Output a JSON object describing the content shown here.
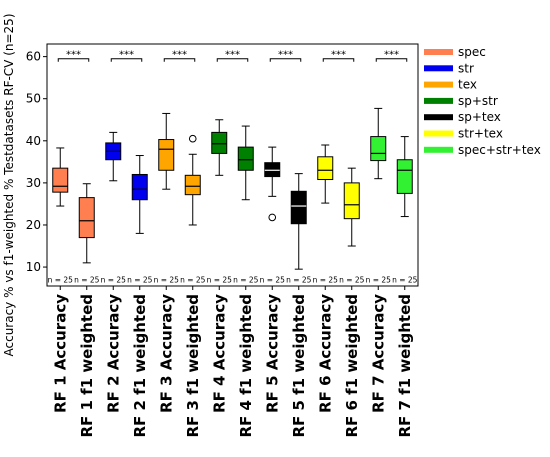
{
  "chart_data": {
    "type": "box",
    "ylabel": "Accuracy % vs f1-weighted % Testdatasets RF-CV (n=25)",
    "ylim": [
      5.5,
      63
    ],
    "yticks": [
      10,
      20,
      30,
      40,
      50,
      60
    ],
    "categories": [
      "RF 1 Accuracy",
      "RF 1 f1 weighted",
      "RF 2 Accuracy",
      "RF 2 f1 weighted",
      "RF 3 Accuracy",
      "RF 3 f1 weighted",
      "RF 4 Accuracy",
      "RF 4 f1 weighted",
      "RF 5 Accuracy",
      "RF 5 f1 weighted",
      "RF 6 Accuracy",
      "RF 6 f1 weighted",
      "RF 7 Accuracy",
      "RF 7 f1 weighted"
    ],
    "boxes": [
      {
        "whisker_low": 24.5,
        "q1": 27.8,
        "median": 29.2,
        "q3": 33.5,
        "whisker_high": 38.3,
        "outliers": []
      },
      {
        "whisker_low": 11.0,
        "q1": 17.0,
        "median": 21.0,
        "q3": 26.5,
        "whisker_high": 29.8,
        "outliers": []
      },
      {
        "whisker_low": 30.5,
        "q1": 35.5,
        "median": 37.5,
        "q3": 39.5,
        "whisker_high": 42.0,
        "outliers": []
      },
      {
        "whisker_low": 18.0,
        "q1": 26.0,
        "median": 28.5,
        "q3": 32.0,
        "whisker_high": 36.5,
        "outliers": []
      },
      {
        "whisker_low": 28.5,
        "q1": 33.0,
        "median": 38.0,
        "q3": 40.3,
        "whisker_high": 46.5,
        "outliers": []
      },
      {
        "whisker_low": 20.0,
        "q1": 27.2,
        "median": 29.2,
        "q3": 31.8,
        "whisker_high": 36.8,
        "outliers": [
          40.5
        ]
      },
      {
        "whisker_low": 31.8,
        "q1": 37.0,
        "median": 39.3,
        "q3": 42.0,
        "whisker_high": 45.0,
        "outliers": []
      },
      {
        "whisker_low": 26.0,
        "q1": 33.0,
        "median": 35.5,
        "q3": 38.5,
        "whisker_high": 43.5,
        "outliers": []
      },
      {
        "whisker_low": 26.8,
        "q1": 31.5,
        "median": 33.0,
        "q3": 34.8,
        "whisker_high": 38.5,
        "outliers": [
          21.8
        ]
      },
      {
        "whisker_low": 9.5,
        "q1": 20.3,
        "median": 24.5,
        "q3": 28.0,
        "whisker_high": 32.2,
        "outliers": []
      },
      {
        "whisker_low": 25.2,
        "q1": 30.8,
        "median": 33.0,
        "q3": 36.2,
        "whisker_high": 39.0,
        "outliers": []
      },
      {
        "whisker_low": 15.0,
        "q1": 21.5,
        "median": 24.8,
        "q3": 30.0,
        "whisker_high": 33.5,
        "outliers": []
      },
      {
        "whisker_low": 31.0,
        "q1": 35.3,
        "median": 37.0,
        "q3": 41.0,
        "whisker_high": 47.7,
        "outliers": []
      },
      {
        "whisker_low": 22.0,
        "q1": 27.5,
        "median": 33.0,
        "q3": 35.5,
        "whisker_high": 41.0,
        "outliers": []
      }
    ],
    "box_colors": [
      "#FF7F50",
      "#FF7F50",
      "#0000EE",
      "#0000EE",
      "#FFA500",
      "#FFA500",
      "#008000",
      "#008000",
      "#000000",
      "#000000",
      "#FFFF00",
      "#FFFF00",
      "#32F032",
      "#32F032"
    ],
    "median_colors": [
      "#000000",
      "#000000",
      "#000000",
      "#000000",
      "#000000",
      "#000000",
      "#000000",
      "#000000",
      "#FFFFFF",
      "#FFFFFF",
      "#000000",
      "#000000",
      "#000000",
      "#000000"
    ],
    "n_labels": [
      "n = 25",
      "n = 25",
      "n = 25",
      "n = 25",
      "n = 25",
      "n = 25",
      "n = 25",
      "n = 25",
      "n = 25",
      "n = 25",
      "n = 25",
      "n = 25",
      "n = 25",
      "n = 25"
    ],
    "n_label_y": 7.0,
    "significance": [
      {
        "pair": [
          0,
          1
        ],
        "label": "***",
        "y": 59.5
      },
      {
        "pair": [
          2,
          3
        ],
        "label": "***",
        "y": 59.5
      },
      {
        "pair": [
          4,
          5
        ],
        "label": "***",
        "y": 59.5
      },
      {
        "pair": [
          6,
          7
        ],
        "label": "***",
        "y": 59.5
      },
      {
        "pair": [
          8,
          9
        ],
        "label": "***",
        "y": 59.5
      },
      {
        "pair": [
          10,
          11
        ],
        "label": "***",
        "y": 59.5
      },
      {
        "pair": [
          12,
          13
        ],
        "label": "***",
        "y": 59.5
      }
    ],
    "legend": {
      "placement": "outside-right-top",
      "entries": [
        {
          "label": "spec",
          "color": "#FF7F50"
        },
        {
          "label": "str",
          "color": "#0000EE"
        },
        {
          "label": "tex",
          "color": "#FFA500"
        },
        {
          "label": "sp+str",
          "color": "#008000"
        },
        {
          "label": "sp+tex",
          "color": "#000000"
        },
        {
          "label": "str+tex",
          "color": "#FFFF00"
        },
        {
          "label": "spec+str+tex",
          "color": "#32F032"
        }
      ]
    },
    "grid": false
  }
}
